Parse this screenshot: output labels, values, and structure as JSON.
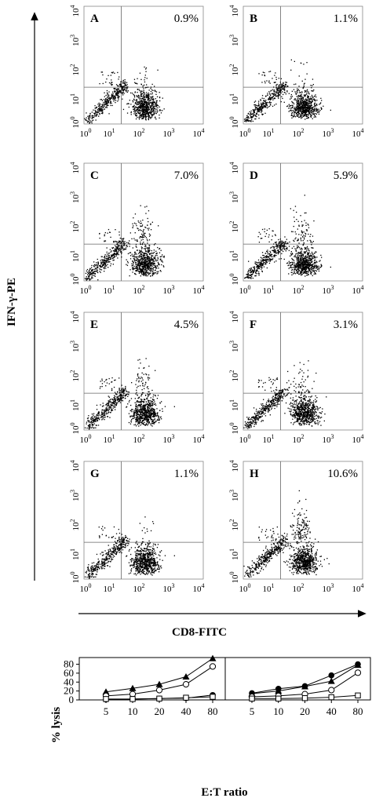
{
  "flow": {
    "y_axis_title": "IFN-γ-PE",
    "x_axis_title": "CD8-FITC",
    "tick_exp": [
      "0",
      "1",
      "2",
      "3",
      "4"
    ],
    "panels": [
      {
        "letter": "A",
        "percent": "0.9%"
      },
      {
        "letter": "B",
        "percent": "1.1%"
      },
      {
        "letter": "C",
        "percent": "7.0%"
      },
      {
        "letter": "D",
        "percent": "5.9%"
      },
      {
        "letter": "E",
        "percent": "4.5%"
      },
      {
        "letter": "F",
        "percent": "3.1%"
      },
      {
        "letter": "G",
        "percent": "1.1%"
      },
      {
        "letter": "H",
        "percent": "10.6%"
      }
    ]
  },
  "chart_data": [
    {
      "type": "scatter",
      "xlim": [
        0,
        4
      ],
      "ylim": [
        0,
        4
      ],
      "x_scale": "log",
      "y_scale": "log",
      "xlabel": "CD8-FITC",
      "ylabel": "IFN-γ-PE",
      "quadrant_gate_x": 1.25,
      "quadrant_gate_y": 1.25,
      "panels": [
        {
          "label": "A",
          "upper_right_percent": 0.9
        },
        {
          "label": "B",
          "upper_right_percent": 1.1
        },
        {
          "label": "C",
          "upper_right_percent": 7.0
        },
        {
          "label": "D",
          "upper_right_percent": 5.9
        },
        {
          "label": "E",
          "upper_right_percent": 4.5
        },
        {
          "label": "F",
          "upper_right_percent": 3.1
        },
        {
          "label": "G",
          "upper_right_percent": 1.1
        },
        {
          "label": "H",
          "upper_right_percent": 10.6
        }
      ]
    },
    {
      "type": "line",
      "xlabel": "E:T ratio",
      "ylabel": "% lysis",
      "categories": [
        "5",
        "10",
        "20",
        "40",
        "80"
      ],
      "ylim": [
        0,
        95
      ],
      "yticks": [
        "0",
        "20",
        "40",
        "60",
        "80"
      ],
      "panels": [
        {
          "series": [
            {
              "marker": "filled-triangle",
              "values": [
                18,
                26,
                35,
                52,
                93
              ]
            },
            {
              "marker": "open-circle",
              "values": [
                9,
                13,
                22,
                35,
                75
              ]
            },
            {
              "marker": "filled-circle",
              "values": [
                1,
                2,
                3,
                4,
                11
              ]
            },
            {
              "marker": "open-square",
              "values": [
                2,
                2,
                3,
                5,
                7
              ]
            }
          ]
        },
        {
          "series": [
            {
              "marker": "filled-circle",
              "values": [
                15,
                25,
                31,
                55,
                80
              ]
            },
            {
              "marker": "filled-triangle",
              "values": [
                14,
                20,
                30,
                42,
                78
              ]
            },
            {
              "marker": "open-circle",
              "values": [
                7,
                9,
                13,
                22,
                61
              ]
            },
            {
              "marker": "open-square",
              "values": [
                3,
                3,
                4,
                6,
                10
              ]
            }
          ]
        }
      ]
    }
  ]
}
